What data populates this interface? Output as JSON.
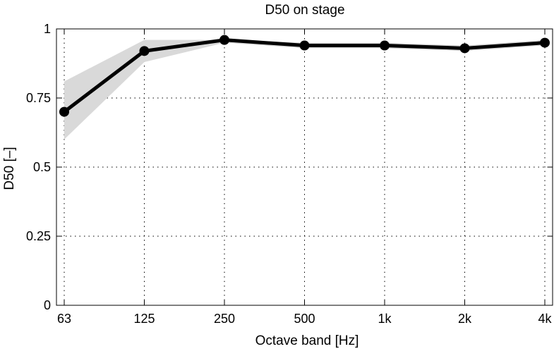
{
  "chart_data": {
    "type": "line",
    "title": "D50 on stage",
    "xlabel": "Octave band [Hz]",
    "ylabel": "D50 [–]",
    "categories": [
      "63",
      "125",
      "250",
      "500",
      "1k",
      "2k",
      "4k"
    ],
    "series": [
      {
        "values": [
          0.7,
          0.92,
          0.96,
          0.94,
          0.94,
          0.93,
          0.95
        ],
        "color": "#000000",
        "band_lower": [
          0.6,
          0.88,
          0.95,
          0.93,
          0.93,
          0.92,
          0.94
        ],
        "band_upper": [
          0.81,
          0.96,
          0.96,
          0.95,
          0.95,
          0.94,
          0.96
        ],
        "band_color": "#d9d9d9"
      }
    ],
    "ylim": [
      0,
      1
    ],
    "yticks": [
      0,
      0.25,
      0.5,
      0.75,
      1
    ],
    "ytick_labels": [
      "0",
      "0.25",
      "0.5",
      "0.75",
      "1"
    ],
    "grid": true,
    "legend": "none"
  }
}
